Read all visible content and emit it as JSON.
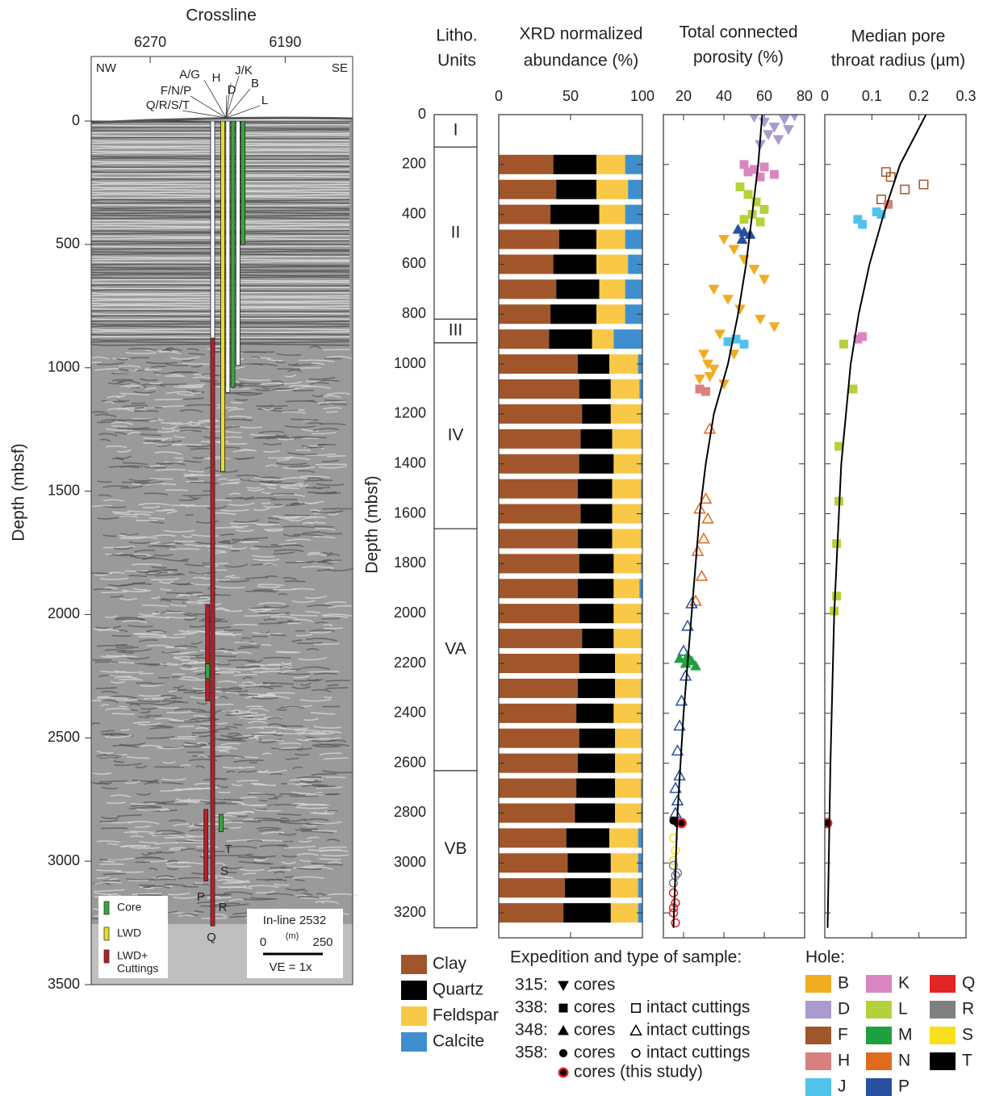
{
  "chart_data": [
    {
      "type": "seismic",
      "title": "Crossline",
      "ylabel": "Depth (mbsf)",
      "xlim": [
        6305,
        6150
      ],
      "xticks": [
        6270,
        6190
      ],
      "ylim": [
        0,
        3500
      ],
      "yticks": [
        0,
        500,
        1000,
        1500,
        2000,
        2500,
        3000,
        3500
      ],
      "corner_labels": [
        "NW",
        "SE"
      ],
      "hole_labels_top": [
        "A/G",
        "H",
        "J/K",
        "D",
        "B",
        "L",
        "F/N/P",
        "Q/R/S/T"
      ],
      "hole_labels_bottom": [
        "T",
        "S",
        "R",
        "P",
        "Q"
      ],
      "tracks": [
        {
          "crossline": 6233,
          "top": 0,
          "bottom": 880,
          "color": "#ffffff"
        },
        {
          "crossline": 6233,
          "top": 880,
          "bottom": 3262,
          "color": "#b5202a"
        },
        {
          "crossline": 6236,
          "top": 1960,
          "bottom": 2350,
          "color": "#b5202a"
        },
        {
          "crossline": 6237,
          "top": 2790,
          "bottom": 3080,
          "color": "#b5202a"
        },
        {
          "crossline": 6236,
          "top": 2200,
          "bottom": 2260,
          "color": "#3aa53a"
        },
        {
          "crossline": 6227,
          "top": 0,
          "bottom": 1420,
          "color": "#e6e02a"
        },
        {
          "crossline": 6224,
          "top": 0,
          "bottom": 1100,
          "color": "#ffffff"
        },
        {
          "crossline": 6221,
          "top": 0,
          "bottom": 1080,
          "color": "#3aa53a"
        },
        {
          "crossline": 6218,
          "top": 0,
          "bottom": 990,
          "color": "#ffffff"
        },
        {
          "crossline": 6215,
          "top": 0,
          "bottom": 500,
          "color": "#3aa53a"
        },
        {
          "crossline": 6228,
          "top": 2810,
          "bottom": 2880,
          "color": "#3aa53a"
        }
      ],
      "legend": [
        {
          "label": [
            "Core"
          ],
          "color": "#3aa53a"
        },
        {
          "label": [
            "LWD"
          ],
          "color": "#e6e02a"
        },
        {
          "label": [
            "LWD+",
            "Cuttings"
          ],
          "color": "#b5202a"
        }
      ],
      "scale_box": {
        "title": "In-line 2532",
        "start": "0",
        "unit": "(m)",
        "end": "250",
        "ve": "VE = 1x"
      }
    },
    {
      "type": "units",
      "title": [
        "Litho.",
        "Units"
      ],
      "ylabel": "Depth (mbsf)",
      "ylim": [
        0,
        3300
      ],
      "yticks": [
        0,
        200,
        400,
        600,
        800,
        1000,
        1200,
        1400,
        1600,
        1800,
        2000,
        2200,
        2400,
        2600,
        2800,
        3000,
        3200
      ],
      "units": [
        {
          "name": "I",
          "top": 0,
          "bottom": 130
        },
        {
          "name": "II",
          "top": 130,
          "bottom": 820
        },
        {
          "name": "III",
          "top": 820,
          "bottom": 915
        },
        {
          "name": "IV",
          "top": 915,
          "bottom": 1660
        },
        {
          "name": "VA",
          "top": 1660,
          "bottom": 2630
        },
        {
          "name": "VB",
          "top": 2630,
          "bottom": 3260
        }
      ]
    },
    {
      "type": "stacked-bar",
      "title": [
        "XRD normalized",
        "abundance (%)"
      ],
      "xlim": [
        0,
        100
      ],
      "xticks": [
        0,
        50,
        100
      ],
      "ylim": [
        0,
        3300
      ],
      "y": [
        200,
        300,
        400,
        500,
        600,
        700,
        800,
        900,
        1000,
        1100,
        1200,
        1300,
        1400,
        1500,
        1600,
        1700,
        1800,
        1900,
        2000,
        2100,
        2200,
        2300,
        2400,
        2500,
        2600,
        2700,
        2800,
        2900,
        3000,
        3100,
        3200
      ],
      "series": [
        {
          "name": "Clay",
          "color": "#a0562a",
          "values": [
            38,
            40,
            36,
            42,
            38,
            40,
            36,
            35,
            55,
            56,
            58,
            57,
            56,
            55,
            57,
            55,
            56,
            55,
            56,
            58,
            56,
            55,
            54,
            56,
            55,
            54,
            53,
            47,
            48,
            46,
            45
          ]
        },
        {
          "name": "Quartz",
          "color": "#000000",
          "values": [
            30,
            28,
            34,
            26,
            30,
            30,
            32,
            30,
            22,
            22,
            20,
            22,
            24,
            24,
            22,
            24,
            24,
            25,
            24,
            22,
            25,
            26,
            26,
            25,
            26,
            27,
            28,
            30,
            30,
            32,
            33
          ]
        },
        {
          "name": "Feldspar",
          "color": "#f9c846",
          "values": [
            20,
            22,
            18,
            20,
            22,
            18,
            20,
            15,
            20,
            20,
            21,
            20,
            19,
            20,
            20,
            20,
            19,
            18,
            19,
            19,
            18,
            18,
            19,
            18,
            18,
            18,
            18,
            20,
            19,
            19,
            19
          ]
        },
        {
          "name": "Calcite",
          "color": "#3f8fcf",
          "values": [
            12,
            10,
            12,
            12,
            10,
            12,
            12,
            20,
            3,
            2,
            1,
            1,
            1,
            1,
            1,
            1,
            1,
            2,
            1,
            1,
            1,
            1,
            1,
            1,
            1,
            1,
            1,
            3,
            3,
            3,
            3
          ]
        }
      ]
    },
    {
      "type": "scatter",
      "title": [
        "Total connected",
        "porosity (%)"
      ],
      "xlim": [
        10,
        80
      ],
      "xticks": [
        20,
        40,
        60,
        80
      ],
      "ylim": [
        0,
        3300
      ],
      "trend": {
        "x": [
          59,
          57,
          54,
          51,
          47,
          42,
          35,
          31,
          28,
          26,
          24,
          20,
          17,
          15
        ],
        "y": [
          0,
          200,
          400,
          600,
          800,
          1000,
          1200,
          1400,
          1600,
          1800,
          2000,
          2400,
          2800,
          3260
        ]
      },
      "series": [
        {
          "color": "#a99bd0",
          "marker": "triangle-down",
          "x": [
            55,
            60,
            65,
            70,
            75,
            62,
            58,
            67,
            72
          ],
          "y": [
            10,
            30,
            50,
            20,
            5,
            80,
            120,
            100,
            60
          ]
        },
        {
          "color": "#d986c0",
          "marker": "square",
          "x": [
            50,
            55,
            60,
            65,
            52,
            58
          ],
          "y": [
            200,
            220,
            210,
            240,
            230,
            250
          ]
        },
        {
          "color": "#b5d13a",
          "marker": "square",
          "x": [
            48,
            52,
            56,
            60,
            50,
            58,
            54
          ],
          "y": [
            290,
            320,
            350,
            380,
            420,
            430,
            400
          ]
        },
        {
          "color": "#2850a0",
          "marker": "triangle",
          "x": [
            47,
            50,
            53,
            49
          ],
          "y": [
            460,
            470,
            480,
            500
          ]
        },
        {
          "color": "#f0ad22",
          "marker": "triangle-down",
          "x": [
            40,
            45,
            50,
            55,
            60,
            35,
            42,
            48,
            58,
            65,
            38,
            30,
            32,
            35,
            45,
            28,
            40,
            33
          ],
          "y": [
            500,
            540,
            580,
            620,
            660,
            700,
            740,
            780,
            820,
            850,
            880,
            960,
            1000,
            1020,
            960,
            1060,
            1080,
            1050
          ]
        },
        {
          "color": "#4fc3ea",
          "marker": "square",
          "x": [
            42,
            46,
            50
          ],
          "y": [
            910,
            900,
            920
          ]
        },
        {
          "color": "#d98080",
          "marker": "square",
          "x": [
            28,
            31
          ],
          "y": [
            1100,
            1110
          ]
        },
        {
          "color": "#e06a1e",
          "marker": "triangle-open",
          "x": [
            33,
            31,
            28,
            32,
            30,
            27,
            29,
            26
          ],
          "y": [
            1260,
            1540,
            1580,
            1620,
            1700,
            1750,
            1850,
            1950
          ]
        },
        {
          "color": "#2850a0",
          "marker": "triangle-open",
          "x": [
            24,
            22,
            20,
            21,
            19,
            18,
            17,
            18,
            16,
            17,
            16
          ],
          "y": [
            1960,
            2050,
            2150,
            2250,
            2350,
            2450,
            2550,
            2650,
            2700,
            2750,
            2800
          ]
        },
        {
          "color": "#1fa040",
          "marker": "triangle",
          "x": [
            18,
            21,
            24,
            26,
            22
          ],
          "y": [
            2180,
            2200,
            2190,
            2210,
            2170
          ]
        },
        {
          "color": "#000000",
          "marker": "circle",
          "x": [
            15,
            17
          ],
          "y": [
            2830,
            2840
          ]
        },
        {
          "color": "#000000",
          "marker": "circle-red",
          "x": [
            19
          ],
          "y": [
            2840
          ]
        },
        {
          "color": "#f7e01a",
          "marker": "circle-open",
          "x": [
            15,
            16,
            15
          ],
          "y": [
            2900,
            2950,
            2990
          ]
        },
        {
          "color": "#808080",
          "marker": "circle-open",
          "x": [
            15,
            16,
            15,
            17
          ],
          "y": [
            3010,
            3050,
            3080,
            3040
          ]
        },
        {
          "color": "#e52428",
          "marker": "circle-open",
          "x": [
            15,
            16,
            15,
            16,
            15
          ],
          "y": [
            3120,
            3160,
            3200,
            3240,
            3180
          ]
        }
      ]
    },
    {
      "type": "scatter",
      "title": [
        "Median pore",
        "throat radius (µm)"
      ],
      "xlim": [
        0,
        0.3
      ],
      "xticks": [
        0,
        0.1,
        0.2,
        0.3
      ],
      "ylim": [
        0,
        3300
      ],
      "trend": {
        "x": [
          0.215,
          0.16,
          0.125,
          0.095,
          0.072,
          0.055,
          0.035,
          0.02,
          0.012,
          0.006
        ],
        "y": [
          0,
          200,
          400,
          600,
          800,
          1000,
          1400,
          2000,
          2600,
          3260
        ]
      },
      "series": [
        {
          "color": "#a0562a",
          "marker": "square-open",
          "x": [
            0.13,
            0.14,
            0.17,
            0.21,
            0.12
          ],
          "y": [
            230,
            250,
            300,
            280,
            340
          ]
        },
        {
          "color": "#d98080",
          "marker": "square",
          "x": [
            0.135
          ],
          "y": [
            360
          ]
        },
        {
          "color": "#4fc3ea",
          "marker": "square",
          "x": [
            0.07,
            0.08,
            0.12,
            0.11
          ],
          "y": [
            420,
            440,
            400,
            390
          ]
        },
        {
          "color": "#d986c0",
          "marker": "square",
          "x": [
            0.07,
            0.08
          ],
          "y": [
            900,
            890
          ]
        },
        {
          "color": "#b5d13a",
          "marker": "square",
          "x": [
            0.04,
            0.06,
            0.03,
            0.03,
            0.025,
            0.025,
            0.02
          ],
          "y": [
            920,
            1100,
            1330,
            1550,
            1720,
            1930,
            1990
          ]
        },
        {
          "color": "#000000",
          "marker": "circle-red",
          "x": [
            0.005
          ],
          "y": [
            2840
          ]
        }
      ]
    }
  ],
  "sample_legend": {
    "title": "Expedition and type of sample:",
    "rows": [
      {
        "expedition": "315:",
        "items": [
          {
            "marker": "triangle-down",
            "label": "cores"
          }
        ]
      },
      {
        "expedition": "338:",
        "items": [
          {
            "marker": "square",
            "label": "cores"
          },
          {
            "marker": "square-open",
            "label": "intact cuttings"
          }
        ]
      },
      {
        "expedition": "348:",
        "items": [
          {
            "marker": "triangle",
            "label": "cores"
          },
          {
            "marker": "triangle-open",
            "label": "intact cuttings"
          }
        ]
      },
      {
        "expedition": "358:",
        "items": [
          {
            "marker": "circle",
            "label": "cores"
          },
          {
            "marker": "circle-open",
            "label": "intact cuttings"
          }
        ]
      },
      {
        "items": [
          {
            "marker": "circle-red",
            "label": "cores (this study)"
          }
        ]
      }
    ]
  },
  "hole_legend": {
    "title": "Hole:",
    "items": [
      {
        "name": "B",
        "color": "#f0ad22"
      },
      {
        "name": "D",
        "color": "#a99bd0"
      },
      {
        "name": "F",
        "color": "#a0562a"
      },
      {
        "name": "H",
        "color": "#d98080"
      },
      {
        "name": "J",
        "color": "#4fc3ea"
      },
      {
        "name": "K",
        "color": "#d986c0"
      },
      {
        "name": "L",
        "color": "#b5d13a"
      },
      {
        "name": "M",
        "color": "#1fa040"
      },
      {
        "name": "N",
        "color": "#e06a1e"
      },
      {
        "name": "P",
        "color": "#2850a0"
      },
      {
        "name": "Q",
        "color": "#e52428"
      },
      {
        "name": "R",
        "color": "#808080"
      },
      {
        "name": "S",
        "color": "#f7e01a"
      },
      {
        "name": "T",
        "color": "#000000"
      }
    ]
  }
}
